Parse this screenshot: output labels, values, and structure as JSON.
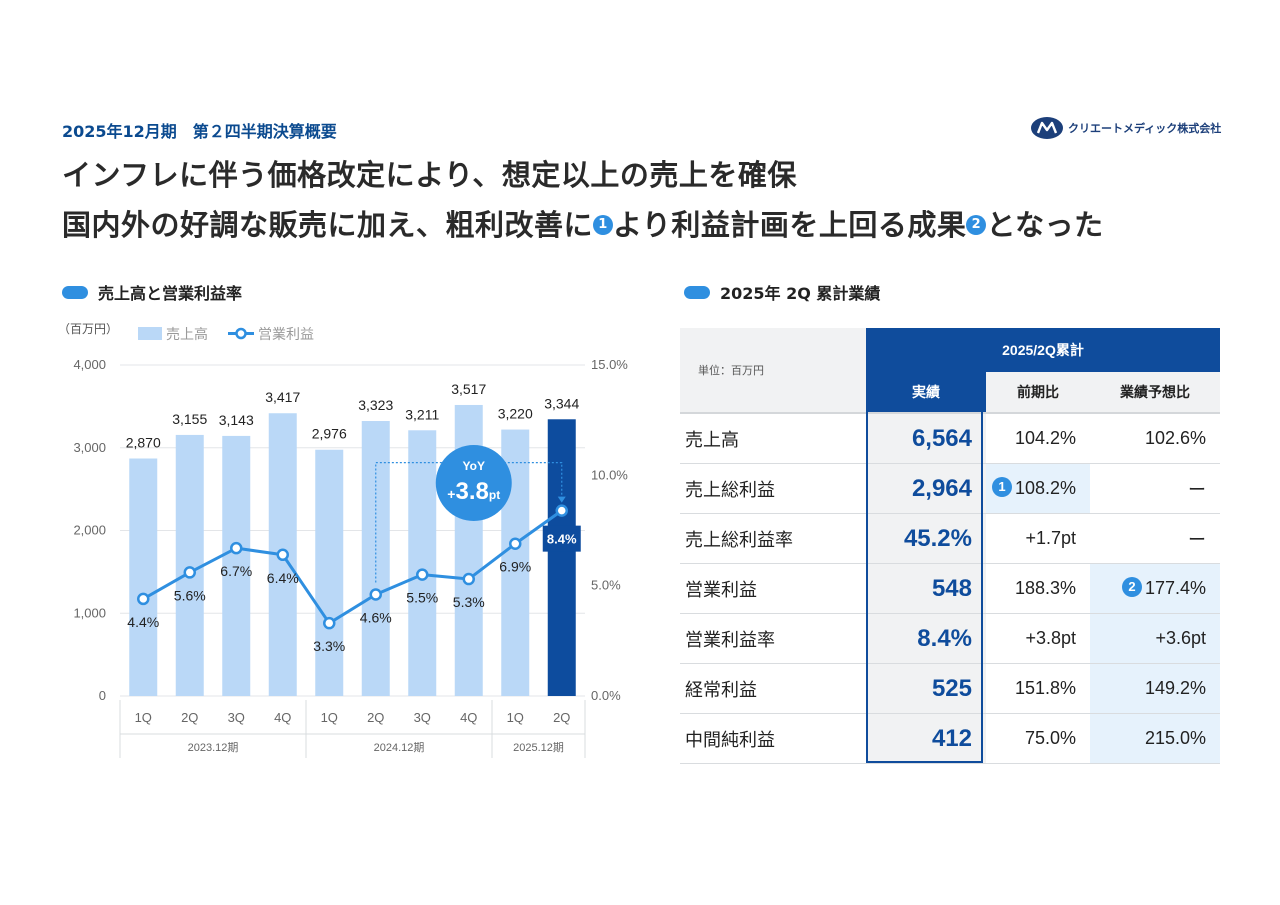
{
  "header": {
    "subtitle": "2025年12月期　第２四半期決算概要",
    "headline_line1": "インフレに伴う価格改定により、想定以上の売上を確保",
    "headline_line2_a": "国内外の好調な販売に加え、粗利改善に",
    "headline_line2_b": "より利益計画を上回る成果",
    "headline_line2_c": "となった",
    "marker1": "1",
    "marker2": "2",
    "logo_text": "クリエートメディック株式会社",
    "logo_icon": "cm-logo-icon"
  },
  "left_section": {
    "title": "売上高と営業利益率"
  },
  "right_section": {
    "title": "2025年 2Q 累計業績"
  },
  "colors": {
    "bar": "#bad8f7",
    "bar_highlight": "#0d4c9e",
    "line": "#2f8fe0",
    "accent_navy": "#0f4c9c",
    "marker": "#2f8fe0",
    "highlight_cell": "#e6f2fc"
  },
  "chart_data": {
    "type": "bar",
    "unit_label": "（百万円）",
    "categories": [
      "1Q",
      "2Q",
      "3Q",
      "4Q",
      "1Q",
      "2Q",
      "3Q",
      "4Q",
      "1Q",
      "2Q"
    ],
    "groups": [
      {
        "label": "2023.12期",
        "count": 4
      },
      {
        "label": "2024.12期",
        "count": 4
      },
      {
        "label": "2025.12期",
        "count": 2
      }
    ],
    "series": [
      {
        "name": "売上高",
        "type": "bar",
        "axis": "left",
        "values": [
          2870,
          3155,
          3143,
          3417,
          2976,
          3323,
          3211,
          3517,
          3220,
          3344
        ],
        "labels": [
          "2,870",
          "3,155",
          "3,143",
          "3,417",
          "2,976",
          "3,323",
          "3,211",
          "3,517",
          "3,220",
          "3,344"
        ]
      },
      {
        "name": "営業利益",
        "type": "line",
        "axis": "right",
        "values": [
          4.4,
          5.6,
          6.7,
          6.4,
          3.3,
          4.6,
          5.5,
          5.3,
          6.9,
          8.4
        ],
        "labels": [
          "4.4%",
          "5.6%",
          "6.7%",
          "6.4%",
          "3.3%",
          "4.6%",
          "5.5%",
          "5.3%",
          "6.9%",
          "8.4%"
        ]
      }
    ],
    "y_left": {
      "min": 0,
      "max": 4000,
      "ticks": [
        "0",
        "1,000",
        "2,000",
        "3,000",
        "4,000"
      ]
    },
    "y_right": {
      "min": 0,
      "max": 15,
      "ticks": [
        "0.0%",
        "5.0%",
        "10.0%",
        "15.0%"
      ]
    },
    "legend_placement": "top-left",
    "highlight_index": 9,
    "annotation": {
      "line1": "YoY",
      "prefix": "+",
      "value": "3.8",
      "unit": "pt"
    }
  },
  "table": {
    "unit_label": "単位：百万円",
    "group_header": "2025/2Q累計",
    "columns": [
      "実績",
      "前期比",
      "業績予想比"
    ],
    "rows": [
      {
        "label": "売上高",
        "actual": "6,564",
        "yoy": "104.2%",
        "forecast": "102.6%"
      },
      {
        "label": "売上総利益",
        "actual": "2,964",
        "yoy": "108.2%",
        "forecast": "ー",
        "yoy_marker": "1"
      },
      {
        "label": "売上総利益率",
        "actual": "45.2%",
        "yoy": "+1.7pt",
        "forecast": "ー"
      },
      {
        "label": "営業利益",
        "actual": "548",
        "yoy": "188.3%",
        "forecast": "177.4%",
        "forecast_marker": "2"
      },
      {
        "label": "営業利益率",
        "actual": "8.4%",
        "yoy": "+3.8pt",
        "forecast": "+3.6pt"
      },
      {
        "label": "経常利益",
        "actual": "525",
        "yoy": "151.8%",
        "forecast": "149.2%"
      },
      {
        "label": "中間純利益",
        "actual": "412",
        "yoy": "75.0%",
        "forecast": "215.0%"
      }
    ]
  }
}
